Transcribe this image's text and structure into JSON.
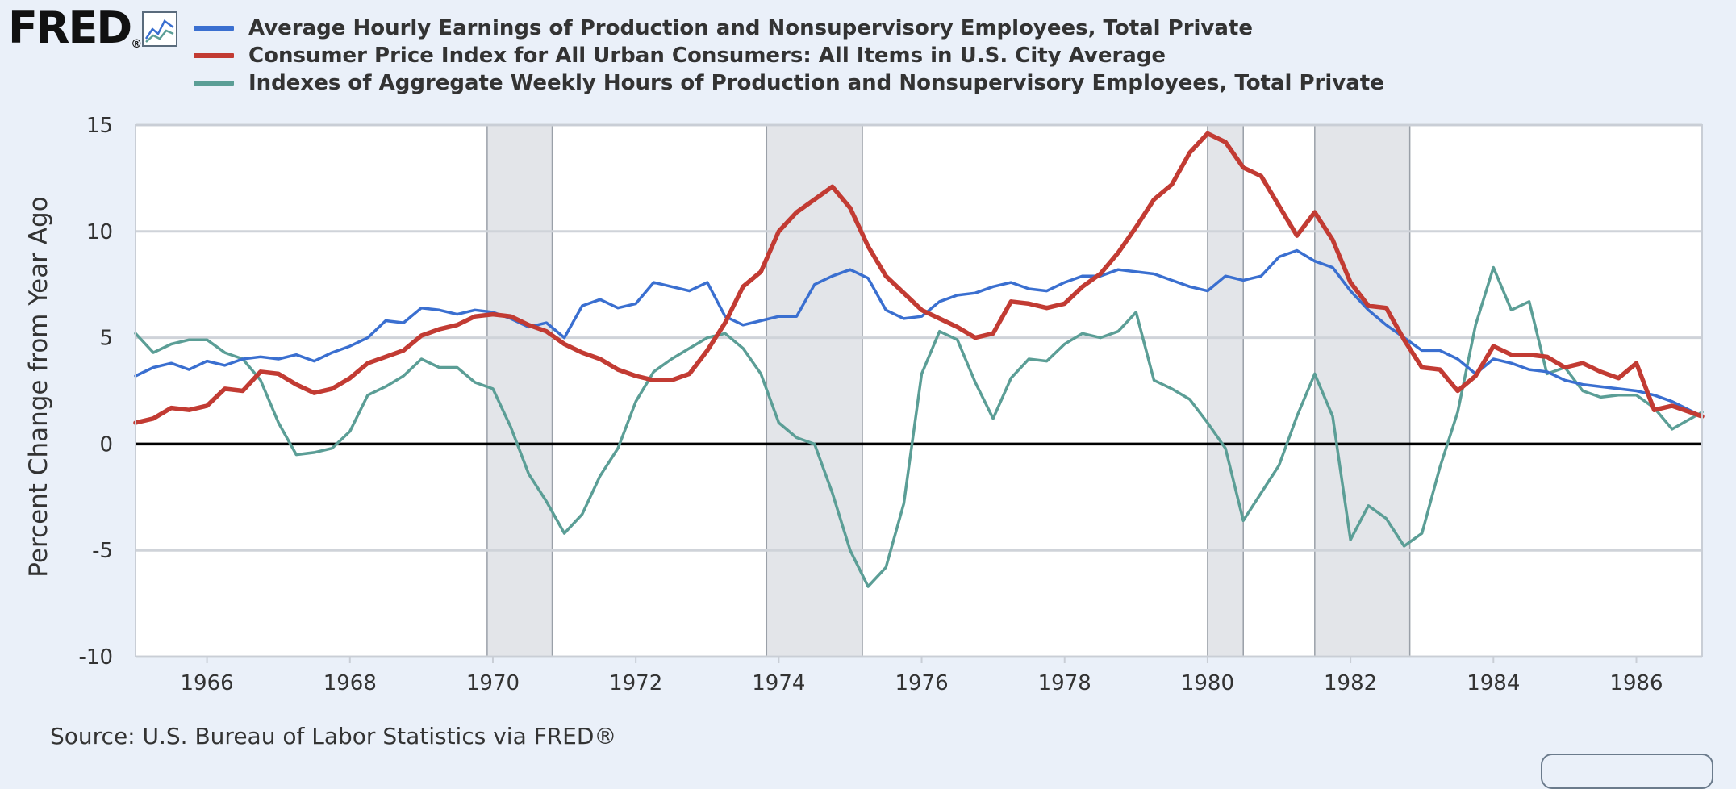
{
  "brand": {
    "logo_text": "FRED",
    "logo_mark": "®",
    "icon": "line-chart-icon"
  },
  "source": "Source: U.S. Bureau of Labor Statistics via FRED®",
  "chart_data": {
    "type": "line",
    "ylabel": "Percent Change from Year Ago",
    "xlim": [
      1965.0,
      1986.92
    ],
    "ylim": [
      -10,
      15
    ],
    "yticks": [
      -10,
      -5,
      0,
      5,
      10,
      15
    ],
    "xticks": [
      1966,
      1968,
      1970,
      1972,
      1974,
      1976,
      1978,
      1980,
      1982,
      1984,
      1986
    ],
    "grid": true,
    "legend_position": "top",
    "recessions": [
      [
        1969.92,
        1970.83
      ],
      [
        1973.83,
        1975.17
      ],
      [
        1980.0,
        1980.5
      ],
      [
        1981.5,
        1982.83
      ]
    ],
    "series": [
      {
        "name": "Average Hourly Earnings of Production and Nonsupervisory Employees, Total Private",
        "color": "#3a6fd0",
        "x": [
          1965.0,
          1965.25,
          1965.5,
          1965.75,
          1966.0,
          1966.25,
          1966.5,
          1966.75,
          1967.0,
          1967.25,
          1967.5,
          1967.75,
          1968.0,
          1968.25,
          1968.5,
          1968.75,
          1969.0,
          1969.25,
          1969.5,
          1969.75,
          1970.0,
          1970.25,
          1970.5,
          1970.75,
          1971.0,
          1971.25,
          1971.5,
          1971.75,
          1972.0,
          1972.25,
          1972.5,
          1972.75,
          1973.0,
          1973.25,
          1973.5,
          1973.75,
          1974.0,
          1974.25,
          1974.5,
          1974.75,
          1975.0,
          1975.25,
          1975.5,
          1975.75,
          1976.0,
          1976.25,
          1976.5,
          1976.75,
          1977.0,
          1977.25,
          1977.5,
          1977.75,
          1978.0,
          1978.25,
          1978.5,
          1978.75,
          1979.0,
          1979.25,
          1979.5,
          1979.75,
          1980.0,
          1980.25,
          1980.5,
          1980.75,
          1981.0,
          1981.25,
          1981.5,
          1981.75,
          1982.0,
          1982.25,
          1982.5,
          1982.75,
          1983.0,
          1983.25,
          1983.5,
          1983.75,
          1984.0,
          1984.25,
          1984.5,
          1984.75,
          1985.0,
          1985.25,
          1985.5,
          1985.75,
          1986.0,
          1986.25,
          1986.5,
          1986.92
        ],
        "y": [
          3.2,
          3.6,
          3.8,
          3.5,
          3.9,
          3.7,
          4.0,
          4.1,
          4.0,
          4.2,
          3.9,
          4.3,
          4.6,
          5.0,
          5.8,
          5.7,
          6.4,
          6.3,
          6.1,
          6.3,
          6.2,
          5.9,
          5.5,
          5.7,
          5.0,
          6.5,
          6.8,
          6.4,
          6.6,
          7.6,
          7.4,
          7.2,
          7.6,
          6.0,
          5.6,
          5.8,
          6.0,
          6.0,
          7.5,
          7.9,
          8.2,
          7.8,
          6.3,
          5.9,
          6.0,
          6.7,
          7.0,
          7.1,
          7.4,
          7.6,
          7.3,
          7.2,
          7.6,
          7.9,
          7.9,
          8.2,
          8.1,
          8.0,
          7.7,
          7.4,
          7.2,
          7.9,
          7.7,
          7.9,
          8.8,
          9.1,
          8.6,
          8.3,
          7.2,
          6.3,
          5.6,
          5.0,
          4.4,
          4.4,
          4.0,
          3.3,
          4.0,
          3.8,
          3.5,
          3.4,
          3.0,
          2.8,
          2.7,
          2.6,
          2.5,
          2.3,
          2.0,
          1.3
        ]
      },
      {
        "name": "Consumer Price Index for All Urban Consumers: All Items in U.S. City Average",
        "color": "#c23b33",
        "x": [
          1965.0,
          1965.25,
          1965.5,
          1965.75,
          1966.0,
          1966.25,
          1966.5,
          1966.75,
          1967.0,
          1967.25,
          1967.5,
          1967.75,
          1968.0,
          1968.25,
          1968.5,
          1968.75,
          1969.0,
          1969.25,
          1969.5,
          1969.75,
          1970.0,
          1970.25,
          1970.5,
          1970.75,
          1971.0,
          1971.25,
          1971.5,
          1971.75,
          1972.0,
          1972.25,
          1972.5,
          1972.75,
          1973.0,
          1973.25,
          1973.5,
          1973.75,
          1974.0,
          1974.25,
          1974.5,
          1974.75,
          1975.0,
          1975.25,
          1975.5,
          1975.75,
          1976.0,
          1976.25,
          1976.5,
          1976.75,
          1977.0,
          1977.25,
          1977.5,
          1977.75,
          1978.0,
          1978.25,
          1978.5,
          1978.75,
          1979.0,
          1979.25,
          1979.5,
          1979.75,
          1980.0,
          1980.25,
          1980.5,
          1980.75,
          1981.0,
          1981.25,
          1981.5,
          1981.75,
          1982.0,
          1982.25,
          1982.5,
          1982.75,
          1983.0,
          1983.25,
          1983.5,
          1983.75,
          1984.0,
          1984.25,
          1984.5,
          1984.75,
          1985.0,
          1985.25,
          1985.5,
          1985.75,
          1986.0,
          1986.25,
          1986.5,
          1986.92
        ],
        "y": [
          1.0,
          1.2,
          1.7,
          1.6,
          1.8,
          2.6,
          2.5,
          3.4,
          3.3,
          2.8,
          2.4,
          2.6,
          3.1,
          3.8,
          4.1,
          4.4,
          5.1,
          5.4,
          5.6,
          6.0,
          6.1,
          6.0,
          5.6,
          5.3,
          4.7,
          4.3,
          4.0,
          3.5,
          3.2,
          3.0,
          3.0,
          3.3,
          4.4,
          5.7,
          7.4,
          8.1,
          10.0,
          10.9,
          11.5,
          12.1,
          11.1,
          9.3,
          7.9,
          7.1,
          6.3,
          5.9,
          5.5,
          5.0,
          5.2,
          6.7,
          6.6,
          6.4,
          6.6,
          7.4,
          8.0,
          9.0,
          10.2,
          11.5,
          12.2,
          13.7,
          14.6,
          14.2,
          13.0,
          12.6,
          11.2,
          9.8,
          10.9,
          9.6,
          7.6,
          6.5,
          6.4,
          4.9,
          3.6,
          3.5,
          2.5,
          3.2,
          4.6,
          4.2,
          4.2,
          4.1,
          3.6,
          3.8,
          3.4,
          3.1,
          3.8,
          1.6,
          1.8,
          1.3
        ]
      },
      {
        "name": "Indexes of Aggregate Weekly Hours of Production and Nonsupervisory Employees, Total Private",
        "color": "#5b9e96",
        "x": [
          1965.0,
          1965.25,
          1965.5,
          1965.75,
          1966.0,
          1966.25,
          1966.5,
          1966.75,
          1967.0,
          1967.25,
          1967.5,
          1967.75,
          1968.0,
          1968.25,
          1968.5,
          1968.75,
          1969.0,
          1969.25,
          1969.5,
          1969.75,
          1970.0,
          1970.25,
          1970.5,
          1970.75,
          1971.0,
          1971.25,
          1971.5,
          1971.75,
          1972.0,
          1972.25,
          1972.5,
          1972.75,
          1973.0,
          1973.25,
          1973.5,
          1973.75,
          1974.0,
          1974.25,
          1974.5,
          1974.75,
          1975.0,
          1975.25,
          1975.5,
          1975.75,
          1976.0,
          1976.25,
          1976.5,
          1976.75,
          1977.0,
          1977.25,
          1977.5,
          1977.75,
          1978.0,
          1978.25,
          1978.5,
          1978.75,
          1979.0,
          1979.25,
          1979.5,
          1979.75,
          1980.0,
          1980.25,
          1980.5,
          1980.75,
          1981.0,
          1981.25,
          1981.5,
          1981.75,
          1982.0,
          1982.25,
          1982.5,
          1982.75,
          1983.0,
          1983.25,
          1983.5,
          1983.75,
          1984.0,
          1984.25,
          1984.5,
          1984.75,
          1985.0,
          1985.25,
          1985.5,
          1985.75,
          1986.0,
          1986.25,
          1986.5,
          1986.92
        ],
        "y": [
          5.2,
          4.3,
          4.7,
          4.9,
          4.9,
          4.3,
          4.0,
          3.0,
          1.0,
          -0.5,
          -0.4,
          -0.2,
          0.6,
          2.3,
          2.7,
          3.2,
          4.0,
          3.6,
          3.6,
          2.9,
          2.6,
          0.8,
          -1.4,
          -2.7,
          -4.2,
          -3.3,
          -1.5,
          -0.2,
          2.0,
          3.4,
          4.0,
          4.5,
          5.0,
          5.2,
          4.5,
          3.3,
          1.0,
          0.3,
          0.0,
          -2.3,
          -5.0,
          -6.7,
          -5.8,
          -2.8,
          3.3,
          5.3,
          4.9,
          2.9,
          1.2,
          3.1,
          4.0,
          3.9,
          4.7,
          5.2,
          5.0,
          5.3,
          6.2,
          3.0,
          2.6,
          2.1,
          1.0,
          -0.2,
          -3.6,
          -2.3,
          -1.0,
          1.3,
          3.3,
          1.3,
          -4.5,
          -2.9,
          -3.5,
          -4.8,
          -4.2,
          -1.1,
          1.5,
          5.6,
          8.3,
          6.3,
          6.7,
          3.3,
          3.6,
          2.5,
          2.2,
          2.3,
          2.3,
          1.7,
          0.7,
          1.5
        ]
      }
    ]
  }
}
